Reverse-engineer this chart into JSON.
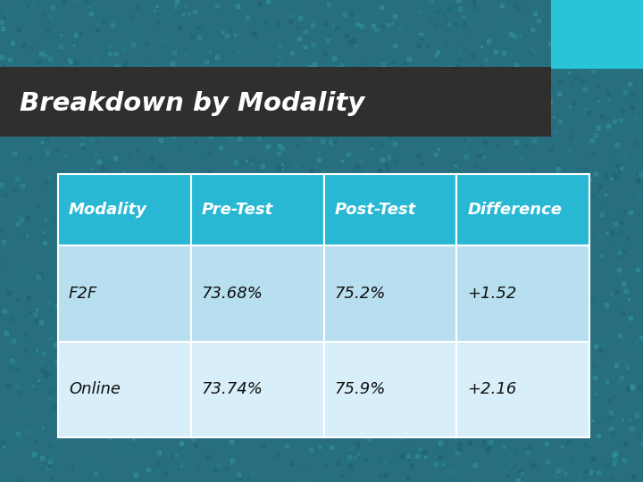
{
  "title": "Breakdown by Modality",
  "title_bg": "#2f2f2f",
  "title_color": "#ffffff",
  "accent_color": "#29c5d6",
  "bg_color_top": "#2a8f96",
  "bg_color_bottom": "#1a5a70",
  "table_header_bg": "#29b8d4",
  "table_header_color": "#ffffff",
  "table_row1_bg": "#b8dff0",
  "table_row2_bg": "#d8eef8",
  "table_text_color": "#111111",
  "headers": [
    "Modality",
    "Pre-Test",
    "Post-Test",
    "Difference"
  ],
  "rows": [
    [
      "F2F",
      "73.68%",
      "75.2%",
      "+1.52"
    ],
    [
      "Online",
      "73.74%",
      "75.9%",
      "+2.16"
    ]
  ]
}
